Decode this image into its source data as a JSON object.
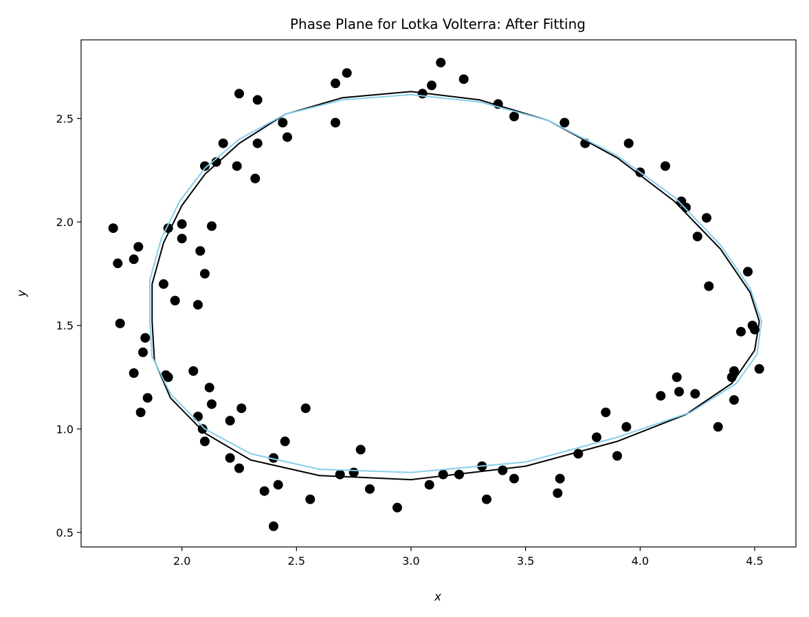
{
  "chart_data": {
    "type": "scatter",
    "title": "Phase Plane for Lotka Volterra: After Fitting",
    "xlabel": "x",
    "ylabel": "y",
    "xlim": [
      1.56,
      4.68
    ],
    "ylim": [
      0.43,
      2.88
    ],
    "xticks": [
      2.0,
      2.5,
      3.0,
      3.5,
      4.0,
      4.5
    ],
    "yticks": [
      0.5,
      1.0,
      1.5,
      2.0,
      2.5
    ],
    "xtick_labels": [
      "2.0",
      "2.5",
      "3.0",
      "3.5",
      "4.0",
      "4.5"
    ],
    "ytick_labels": [
      "0.5",
      "1.0",
      "1.5",
      "2.0",
      "2.5"
    ],
    "grid": false,
    "legend": "none",
    "series": [
      {
        "kind": "scatter",
        "color": "#000000",
        "points": [
          [
            1.7,
            1.97
          ],
          [
            1.72,
            1.8
          ],
          [
            1.73,
            1.51
          ],
          [
            1.79,
            1.82
          ],
          [
            1.79,
            1.27
          ],
          [
            1.81,
            1.88
          ],
          [
            1.82,
            1.08
          ],
          [
            1.83,
            1.37
          ],
          [
            1.84,
            1.44
          ],
          [
            1.85,
            1.15
          ],
          [
            1.92,
            1.7
          ],
          [
            1.93,
            1.26
          ],
          [
            1.94,
            1.25
          ],
          [
            1.94,
            1.97
          ],
          [
            1.97,
            1.62
          ],
          [
            2.0,
            1.92
          ],
          [
            2.0,
            1.99
          ],
          [
            2.05,
            1.28
          ],
          [
            2.07,
            1.06
          ],
          [
            2.07,
            1.6
          ],
          [
            2.08,
            1.86
          ],
          [
            2.09,
            1.0
          ],
          [
            2.1,
            0.94
          ],
          [
            2.1,
            2.27
          ],
          [
            2.1,
            1.75
          ],
          [
            2.12,
            1.2
          ],
          [
            2.13,
            1.12
          ],
          [
            2.13,
            1.98
          ],
          [
            2.15,
            2.29
          ],
          [
            2.18,
            2.38
          ],
          [
            2.21,
            1.04
          ],
          [
            2.21,
            0.86
          ],
          [
            2.24,
            2.27
          ],
          [
            2.25,
            0.81
          ],
          [
            2.25,
            2.62
          ],
          [
            2.26,
            1.1
          ],
          [
            2.32,
            2.21
          ],
          [
            2.33,
            2.38
          ],
          [
            2.33,
            2.59
          ],
          [
            2.36,
            0.7
          ],
          [
            2.4,
            0.53
          ],
          [
            2.4,
            0.86
          ],
          [
            2.42,
            0.73
          ],
          [
            2.44,
            2.48
          ],
          [
            2.45,
            0.94
          ],
          [
            2.46,
            2.41
          ],
          [
            2.54,
            1.1
          ],
          [
            2.56,
            0.66
          ],
          [
            2.67,
            2.67
          ],
          [
            2.67,
            2.48
          ],
          [
            2.69,
            0.78
          ],
          [
            2.72,
            2.72
          ],
          [
            2.75,
            0.79
          ],
          [
            2.78,
            0.9
          ],
          [
            2.82,
            0.71
          ],
          [
            2.94,
            0.62
          ],
          [
            3.05,
            2.62
          ],
          [
            3.08,
            0.73
          ],
          [
            3.09,
            2.66
          ],
          [
            3.13,
            2.77
          ],
          [
            3.14,
            0.78
          ],
          [
            3.21,
            0.78
          ],
          [
            3.23,
            2.69
          ],
          [
            3.31,
            0.82
          ],
          [
            3.33,
            0.66
          ],
          [
            3.38,
            2.57
          ],
          [
            3.4,
            0.8
          ],
          [
            3.45,
            2.51
          ],
          [
            3.45,
            0.76
          ],
          [
            3.64,
            0.69
          ],
          [
            3.65,
            0.76
          ],
          [
            3.67,
            2.48
          ],
          [
            3.73,
            0.88
          ],
          [
            3.76,
            2.38
          ],
          [
            3.81,
            0.96
          ],
          [
            3.85,
            1.08
          ],
          [
            3.9,
            0.87
          ],
          [
            3.94,
            1.01
          ],
          [
            3.95,
            2.38
          ],
          [
            4.0,
            2.24
          ],
          [
            4.09,
            1.16
          ],
          [
            4.11,
            2.27
          ],
          [
            4.16,
            1.25
          ],
          [
            4.17,
            1.18
          ],
          [
            4.18,
            2.1
          ],
          [
            4.2,
            2.07
          ],
          [
            4.24,
            1.17
          ],
          [
            4.25,
            1.93
          ],
          [
            4.29,
            2.02
          ],
          [
            4.3,
            1.69
          ],
          [
            4.34,
            1.01
          ],
          [
            4.4,
            1.25
          ],
          [
            4.41,
            1.28
          ],
          [
            4.41,
            1.14
          ],
          [
            4.44,
            1.47
          ],
          [
            4.47,
            1.76
          ],
          [
            4.49,
            1.5
          ],
          [
            4.5,
            1.48
          ],
          [
            4.52,
            1.29
          ]
        ]
      },
      {
        "kind": "line",
        "color": "#000000",
        "points": [
          [
            1.87,
            1.52
          ],
          [
            1.87,
            1.7
          ],
          [
            1.92,
            1.9
          ],
          [
            2.0,
            2.08
          ],
          [
            2.1,
            2.23
          ],
          [
            2.25,
            2.38
          ],
          [
            2.45,
            2.52
          ],
          [
            2.7,
            2.6
          ],
          [
            3.0,
            2.63
          ],
          [
            3.3,
            2.59
          ],
          [
            3.6,
            2.49
          ],
          [
            3.9,
            2.31
          ],
          [
            4.15,
            2.1
          ],
          [
            4.35,
            1.87
          ],
          [
            4.48,
            1.66
          ],
          [
            4.52,
            1.52
          ],
          [
            4.5,
            1.38
          ],
          [
            4.4,
            1.22
          ],
          [
            4.2,
            1.07
          ],
          [
            3.9,
            0.94
          ],
          [
            3.5,
            0.82
          ],
          [
            3.0,
            0.755
          ],
          [
            2.6,
            0.775
          ],
          [
            2.3,
            0.85
          ],
          [
            2.1,
            0.98
          ],
          [
            1.95,
            1.15
          ],
          [
            1.88,
            1.33
          ],
          [
            1.87,
            1.52
          ]
        ]
      },
      {
        "kind": "line",
        "color": "#87ceeb",
        "points": [
          [
            1.86,
            1.52
          ],
          [
            1.86,
            1.72
          ],
          [
            1.91,
            1.92
          ],
          [
            1.99,
            2.1
          ],
          [
            2.1,
            2.26
          ],
          [
            2.25,
            2.4
          ],
          [
            2.45,
            2.52
          ],
          [
            2.7,
            2.59
          ],
          [
            3.0,
            2.615
          ],
          [
            3.3,
            2.58
          ],
          [
            3.6,
            2.49
          ],
          [
            3.9,
            2.32
          ],
          [
            4.15,
            2.12
          ],
          [
            4.35,
            1.89
          ],
          [
            4.48,
            1.68
          ],
          [
            4.53,
            1.52
          ],
          [
            4.51,
            1.36
          ],
          [
            4.42,
            1.22
          ],
          [
            4.22,
            1.08
          ],
          [
            3.9,
            0.96
          ],
          [
            3.5,
            0.84
          ],
          [
            3.0,
            0.79
          ],
          [
            2.6,
            0.805
          ],
          [
            2.3,
            0.88
          ],
          [
            2.1,
            1.0
          ],
          [
            1.95,
            1.17
          ],
          [
            1.87,
            1.35
          ],
          [
            1.86,
            1.52
          ]
        ]
      }
    ]
  }
}
